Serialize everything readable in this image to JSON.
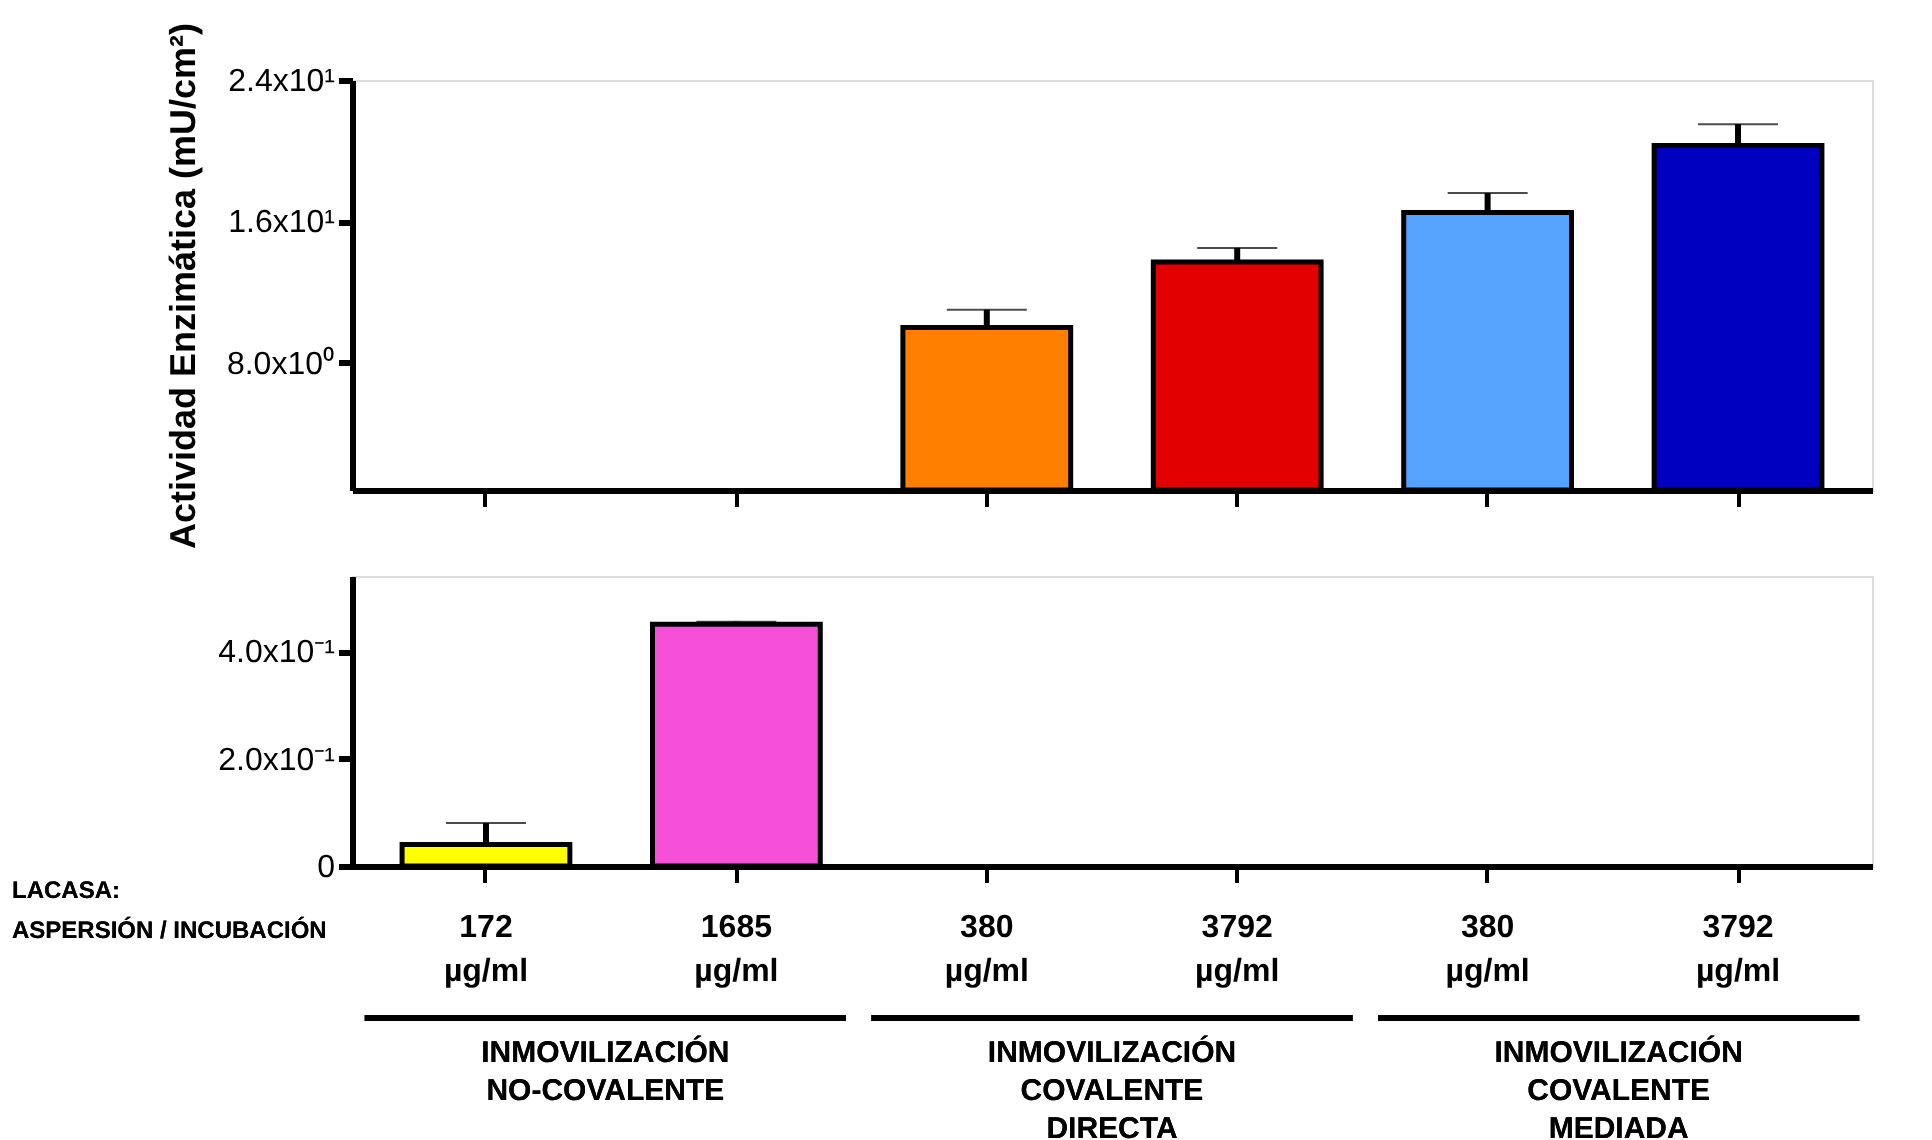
{
  "chart_data": [
    {
      "type": "bar",
      "ylabel": "Actividad Enzimática (mU/cm²)",
      "categories": [
        null,
        null,
        null,
        null,
        null,
        null
      ],
      "values": [
        null,
        null,
        10.0,
        13.7,
        16.5,
        20.3
      ],
      "errors": [
        null,
        null,
        1.0,
        0.8,
        1.1,
        1.2
      ],
      "colors": [
        null,
        null,
        "#ff8000",
        "#e30000",
        "#55a2ff",
        "#0000c0"
      ],
      "ylim": [
        0.8,
        24
      ],
      "yticks": [
        {
          "value": 8,
          "label": "8.0x10⁰"
        },
        {
          "value": 16,
          "label": "1.6x10¹"
        },
        {
          "value": 24,
          "label": "2.4x10¹"
        }
      ],
      "tick_labels": "y",
      "grid": false
    },
    {
      "type": "bar",
      "categories": [
        "172 µg/ml",
        "1685 µg/ml",
        "380 µg/ml",
        "3792 µg/ml",
        "380 µg/ml",
        "3792 µg/ml"
      ],
      "values": [
        0.04,
        0.45,
        null,
        null,
        null,
        null
      ],
      "errors": [
        0.04,
        0.005,
        null,
        null,
        null,
        null
      ],
      "colors": [
        "#ffff00",
        "#f650d8",
        null,
        null,
        null,
        null
      ],
      "ylim": [
        0,
        0.54
      ],
      "yticks": [
        0,
        {
          "value": 0.2,
          "label": "2.0x10⁻¹"
        },
        {
          "value": 0.4,
          "label": "4.0x10⁻¹"
        }
      ],
      "grid": false,
      "annotations": [
        "LACASA:",
        "ASPERSIÓN / INCUBACIÓN",
        "INMOVILIZACIÓN NO-COVALENTE",
        "INMOVILIZACIÓN COVALENTE DIRECTA",
        "INMOVILIZACIÓN COVALENTE MEDIADA"
      ]
    }
  ]
}
